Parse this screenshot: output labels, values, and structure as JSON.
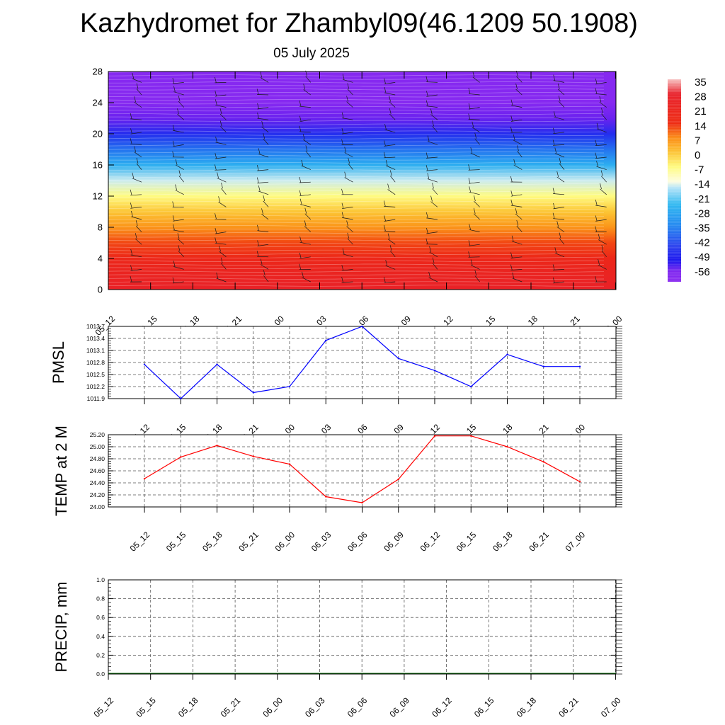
{
  "title": "Kazhydromet for Zhambyl09(46.1209 50.1908)",
  "subtitle": "05 July 2025",
  "time_labels": [
    "05_12",
    "05_15",
    "05_18",
    "05_21",
    "06_00",
    "06_03",
    "06_06",
    "06_09",
    "06_12",
    "06_15",
    "06_18",
    "06_21",
    "07_00"
  ],
  "colorbar": {
    "labels": [
      "35",
      "28",
      "21",
      "14",
      "7",
      "0",
      "-7",
      "-14",
      "-21",
      "-28",
      "-35",
      "-42",
      "-49",
      "-56"
    ],
    "stops": [
      {
        "t": 35,
        "color": "#f7c0c0"
      },
      {
        "t": 28,
        "color": "#e8202a"
      },
      {
        "t": 14,
        "color": "#ee2a12"
      },
      {
        "t": 7,
        "color": "#fb8c14"
      },
      {
        "t": 0,
        "color": "#fcc535"
      },
      {
        "t": -7,
        "color": "#fffb80"
      },
      {
        "t": -14,
        "color": "#fdfde0"
      },
      {
        "t": -17,
        "color": "#b4e4f8"
      },
      {
        "t": -25,
        "color": "#2fb8f0"
      },
      {
        "t": -35,
        "color": "#2288f0"
      },
      {
        "t": -45,
        "color": "#2a40ee"
      },
      {
        "t": -52,
        "color": "#1c14ee"
      },
      {
        "t": -57,
        "color": "#7f26ef"
      },
      {
        "t": -62,
        "color": "#8a2bf0"
      }
    ]
  },
  "chart_data": [
    {
      "type": "heatmap",
      "variable": "temperature cross-section with wind barbs",
      "x": [
        "05_12",
        "05_15",
        "05_18",
        "05_21",
        "06_00",
        "06_03",
        "06_06",
        "06_09",
        "06_12",
        "06_15",
        "06_18",
        "06_21",
        "07_00"
      ],
      "y_levels": [
        0,
        2,
        4,
        6,
        8,
        10,
        12,
        14,
        16,
        18,
        20,
        22,
        24,
        26,
        28
      ],
      "profile_temperature": [
        26,
        23,
        18,
        12,
        6,
        0,
        -7,
        -16,
        -27,
        -38,
        -48,
        -56,
        -60,
        -60,
        -60
      ],
      "yticks": [
        "0",
        "4",
        "8",
        "12",
        "16",
        "20",
        "24",
        "28"
      ],
      "ylim": [
        0,
        28
      ]
    },
    {
      "type": "line",
      "ylabel": "PMSL",
      "x": [
        "05_12",
        "05_15",
        "05_18",
        "05_21",
        "06_00",
        "06_03",
        "06_06",
        "06_09",
        "06_12",
        "06_15",
        "06_18",
        "06_21",
        "07_00"
      ],
      "values": [
        1012.75,
        1011.9,
        1012.75,
        1012.05,
        1012.2,
        1013.35,
        1013.7,
        1012.9,
        1012.6,
        1012.2,
        1013.0,
        1012.7,
        1012.7
      ],
      "yticks": [
        "1011.9",
        "1012.2",
        "1012.5",
        "1012.8",
        "1013.1",
        "1013.4",
        "1013.7"
      ],
      "ylim": [
        1011.9,
        1013.7
      ],
      "color": "#0000ff"
    },
    {
      "type": "line",
      "ylabel": "TEMP at 2 M",
      "x": [
        "05_12",
        "05_15",
        "05_18",
        "05_21",
        "06_00",
        "06_03",
        "06_06",
        "06_09",
        "06_12",
        "06_15",
        "06_18",
        "06_21",
        "07_00"
      ],
      "values": [
        24.47,
        24.83,
        25.02,
        24.84,
        24.71,
        24.17,
        24.07,
        24.46,
        25.18,
        25.18,
        25.0,
        24.75,
        24.42
      ],
      "yticks": [
        "24.00",
        "24.20",
        "24.40",
        "24.60",
        "24.80",
        "25.00",
        "25.20"
      ],
      "ylim": [
        24.0,
        25.2
      ],
      "color": "#ff0000"
    },
    {
      "type": "bar",
      "ylabel": "PRECIP, mm",
      "x": [
        "05_12",
        "05_15",
        "05_18",
        "05_21",
        "06_00",
        "06_03",
        "06_06",
        "06_09",
        "06_12",
        "06_15",
        "06_18",
        "06_21",
        "07_00"
      ],
      "values": [
        0,
        0,
        0,
        0,
        0,
        0,
        0,
        0,
        0,
        0,
        0,
        0,
        0
      ],
      "yticks": [
        "0.0",
        "0.2",
        "0.4",
        "0.6",
        "0.8",
        "1.0"
      ],
      "ylim": [
        0,
        1.0
      ],
      "color": "#006400"
    }
  ]
}
